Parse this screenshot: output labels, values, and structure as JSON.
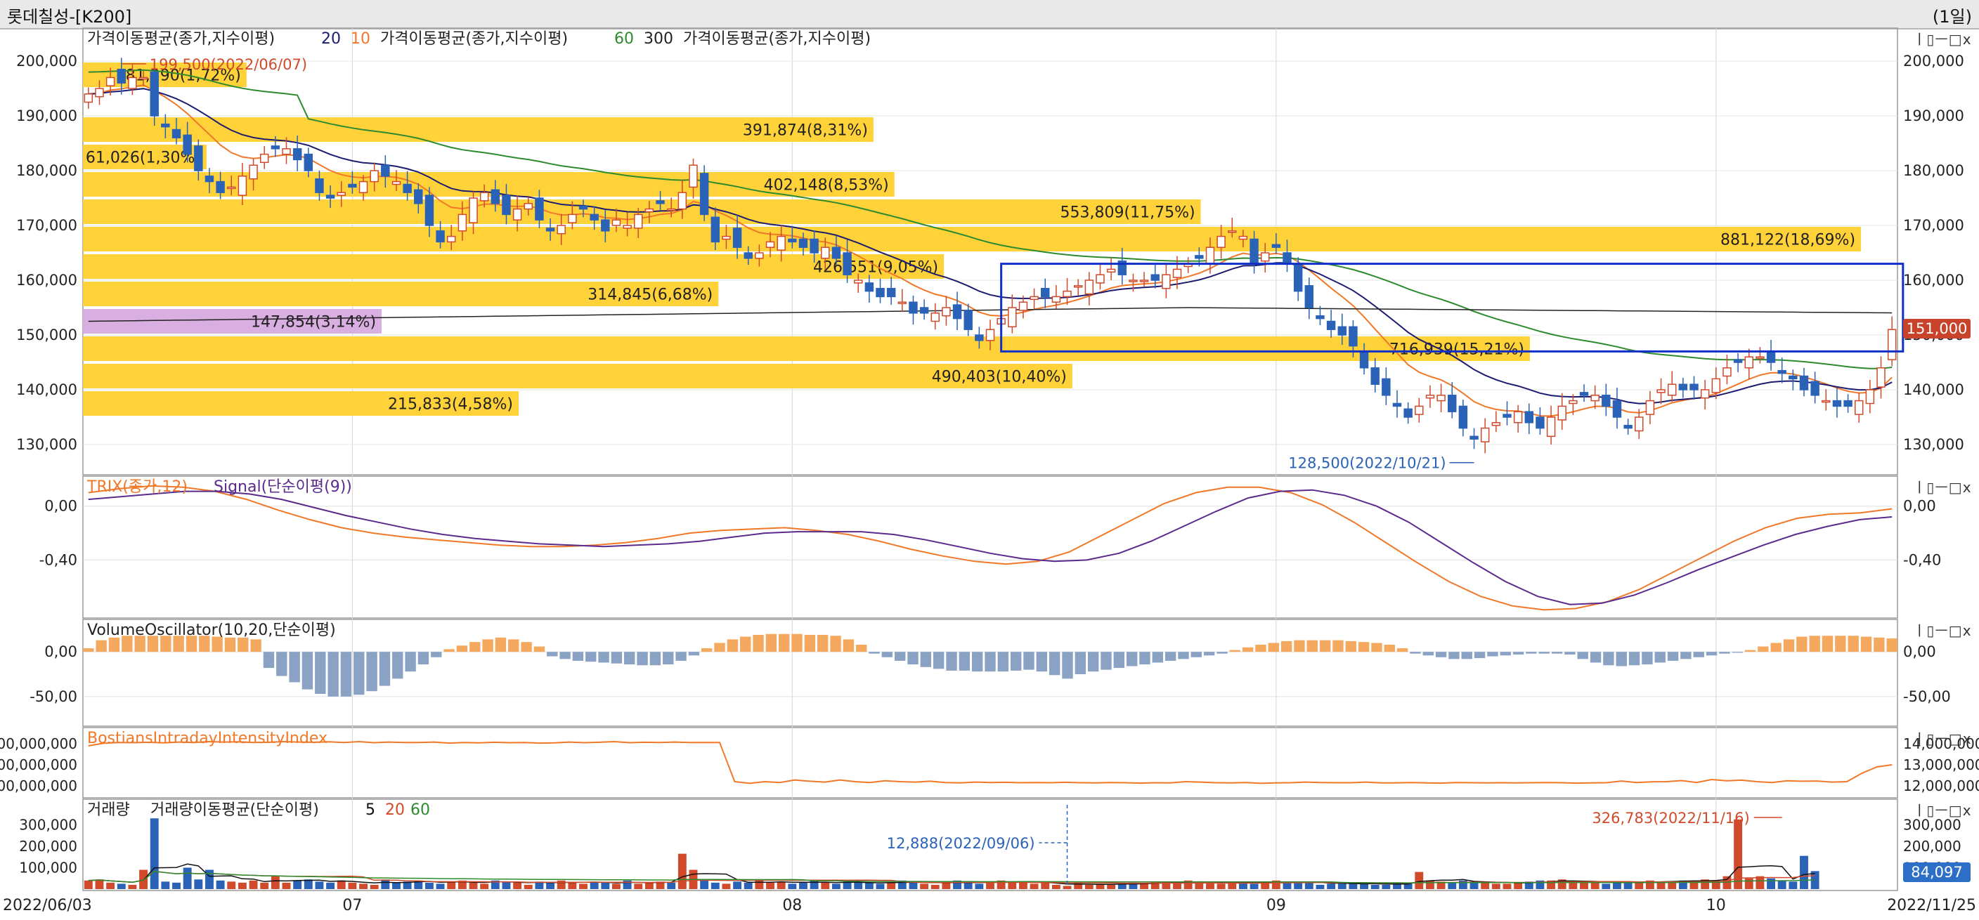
{
  "window": {
    "title": "롯데칠성-[K200]",
    "period": "(1일)",
    "pane_controls": "ㅣ▯ㅡ□ⅹ"
  },
  "colors": {
    "up": "#d04a2b",
    "down": "#2a62b8",
    "ma_short": "#f07828",
    "ma_mid": "#1c1c70",
    "ma_60": "#2e8a2e",
    "ma_300": "#222222",
    "vp_bar": "#ffd23a",
    "vp_bar_current": "#d9aee0",
    "trix": "#f07828",
    "signal": "#5a2a8c",
    "vo_pos": "#f5a95f",
    "vo_neg": "#8aa2c4",
    "bii": "#f07828",
    "box": "#1030c8"
  },
  "chart_data": [
    {
      "type": "candlestick",
      "pane": "price",
      "legend": [
        {
          "text": "가격이동평균(종가,지수이평)",
          "params": [
            "20",
            "10"
          ]
        },
        {
          "text": "가격이동평균(종가,지수이평)",
          "params": [
            "60",
            "300"
          ]
        },
        {
          "text": "가격이동평균(종가,지수이평)",
          "params": []
        }
      ],
      "y_ticks": [
        "200,000",
        "190,000",
        "180,000",
        "170,000",
        "160,000",
        "150,000",
        "140,000",
        "130,000"
      ],
      "ylim": [
        125000,
        205000
      ],
      "x_start_label": "2022/06/03",
      "x_end_label": "2022/11/25",
      "month_labels": [
        "07",
        "08",
        "09",
        "10",
        "11"
      ],
      "current_price": "151,000",
      "closes": [
        194000,
        195000,
        197000,
        196000,
        197000,
        197000,
        190000,
        188000,
        186000,
        183000,
        180000,
        178000,
        176000,
        177000,
        179000,
        181000,
        183000,
        184000,
        184000,
        182000,
        180000,
        176000,
        175000,
        176000,
        177000,
        178000,
        180000,
        179000,
        178000,
        176000,
        174000,
        170000,
        167000,
        168000,
        172000,
        175000,
        176000,
        174000,
        172000,
        173000,
        174000,
        171000,
        169000,
        170000,
        172000,
        173000,
        171000,
        169000,
        171000,
        170000,
        172000,
        173000,
        174000,
        173000,
        176000,
        181000,
        172000,
        167000,
        168000,
        166000,
        164000,
        165000,
        167000,
        168000,
        167000,
        166000,
        165000,
        166000,
        164000,
        161000,
        160000,
        158000,
        157000,
        157000,
        156000,
        154000,
        154000,
        154000,
        155000,
        153000,
        151000,
        149000,
        151000,
        153000,
        155000,
        156000,
        157000,
        157000,
        157000,
        158000,
        159000,
        160000,
        161000,
        162000,
        161000,
        160000,
        160000,
        160000,
        161000,
        162000,
        163000,
        164000,
        166000,
        168000,
        169000,
        168000,
        163000,
        165000,
        166000,
        163000,
        158000,
        155000,
        153000,
        151000,
        150000,
        148000,
        144000,
        141000,
        139000,
        137000,
        135000,
        137000,
        139000,
        139000,
        136000,
        133000,
        131000,
        133000,
        134000,
        135000,
        136000,
        134000,
        133000,
        135000,
        137000,
        138000,
        139000,
        139000,
        137000,
        135000,
        133000,
        135000,
        138000,
        140000,
        141000,
        140000,
        140000,
        140000,
        142000,
        144000,
        145000,
        146000,
        146000,
        145000,
        143000,
        142000,
        140000,
        139000,
        138000,
        137000,
        137000,
        138000,
        140000,
        144000,
        151000
      ],
      "moving_averages": [
        "ma_short",
        "ma_mid",
        "ma_60",
        "ma_300"
      ],
      "volume_profile": [
        {
          "label": "81,290(1,72%)",
          "price_low": 195000,
          "price_high": 200000
        },
        {
          "label": "391,874(8,31%)",
          "price_low": 185000,
          "price_high": 190000
        },
        {
          "label": "61,026(1,30%)",
          "price_low": 180000,
          "price_high": 185000
        },
        {
          "label": "402,148(8,53%)",
          "price_low": 175000,
          "price_high": 180000
        },
        {
          "label": "553,809(11,75%)",
          "price_low": 170000,
          "price_high": 175000
        },
        {
          "label": "881,122(18,69%)",
          "price_low": 165000,
          "price_high": 170000
        },
        {
          "label": "426,551(9,05%)",
          "price_low": 160000,
          "price_high": 165000
        },
        {
          "label": "314,845(6,68%)",
          "price_low": 155000,
          "price_high": 160000
        },
        {
          "label": "147,854(3,14%)",
          "price_low": 150000,
          "price_high": 155000,
          "current": true
        },
        {
          "label": "716,939(15,21%)",
          "price_low": 145000,
          "price_high": 150000
        },
        {
          "label": "490,403(10,40%)",
          "price_low": 140000,
          "price_high": 145000
        },
        {
          "label": "215,833(4,58%)",
          "price_low": 135000,
          "price_high": 140000
        }
      ],
      "annotations": [
        {
          "text": "199,500(2022/06/07)",
          "kind": "high",
          "price": 199500,
          "bar_index": 3
        },
        {
          "text": "128,500(2022/10/21)",
          "kind": "low",
          "price": 128500,
          "bar_index": 126
        }
      ],
      "box": {
        "bar_from": 83,
        "bar_to": 165,
        "price_high": 163000,
        "price_low": 147000
      }
    },
    {
      "type": "line",
      "pane": "trix",
      "legend": [
        {
          "text": "TRIX(종가,12)",
          "color": "trix"
        },
        {
          "text": "Signal(단순이평(9))",
          "color": "signal"
        }
      ],
      "y_ticks": [
        "0,00",
        "-0,40"
      ],
      "ylim": [
        -0.82,
        0.16
      ],
      "series": [
        {
          "name": "TRIX(종가,12)",
          "values": [
            0.1,
            0.13,
            0.15,
            0.14,
            0.11,
            0.05,
            -0.03,
            -0.1,
            -0.16,
            -0.2,
            -0.23,
            -0.25,
            -0.27,
            -0.29,
            -0.3,
            -0.3,
            -0.29,
            -0.27,
            -0.24,
            -0.2,
            -0.18,
            -0.17,
            -0.16,
            -0.18,
            -0.21,
            -0.26,
            -0.32,
            -0.37,
            -0.41,
            -0.43,
            -0.41,
            -0.34,
            -0.22,
            -0.1,
            0.02,
            0.1,
            0.14,
            0.14,
            0.1,
            0.01,
            -0.12,
            -0.27,
            -0.42,
            -0.56,
            -0.67,
            -0.74,
            -0.77,
            -0.76,
            -0.71,
            -0.62,
            -0.5,
            -0.38,
            -0.26,
            -0.16,
            -0.09,
            -0.06,
            -0.05,
            -0.02
          ]
        },
        {
          "name": "Signal(단순이평(9))",
          "values": [
            0.05,
            0.07,
            0.09,
            0.11,
            0.11,
            0.09,
            0.05,
            -0.01,
            -0.07,
            -0.12,
            -0.17,
            -0.21,
            -0.24,
            -0.26,
            -0.28,
            -0.29,
            -0.3,
            -0.29,
            -0.28,
            -0.26,
            -0.23,
            -0.2,
            -0.19,
            -0.19,
            -0.19,
            -0.21,
            -0.25,
            -0.3,
            -0.35,
            -0.39,
            -0.41,
            -0.4,
            -0.35,
            -0.26,
            -0.15,
            -0.04,
            0.06,
            0.11,
            0.12,
            0.08,
            0.0,
            -0.12,
            -0.27,
            -0.42,
            -0.56,
            -0.67,
            -0.73,
            -0.72,
            -0.66,
            -0.57,
            -0.47,
            -0.38,
            -0.29,
            -0.21,
            -0.15,
            -0.1,
            -0.08
          ]
        }
      ]
    },
    {
      "type": "bar",
      "pane": "volume_oscillator",
      "legend": [
        {
          "text": "VolumeOscillator(10,20,단순이평)"
        }
      ],
      "y_ticks": [
        "0,00",
        "-50,00"
      ],
      "ylim": [
        -80,
        30
      ],
      "values": [
        4,
        13,
        16,
        18,
        18,
        18,
        18,
        18,
        18,
        18,
        17,
        16,
        16,
        14,
        -18,
        -27,
        -34,
        -42,
        -47,
        -50,
        -50,
        -48,
        -44,
        -38,
        -30,
        -22,
        -14,
        -6,
        3,
        7,
        11,
        14,
        16,
        14,
        11,
        6,
        -5,
        -8,
        -10,
        -11,
        -12,
        -13,
        -14,
        -15,
        -15,
        -14,
        -10,
        -4,
        4,
        10,
        14,
        17,
        19,
        20,
        20,
        20,
        19,
        19,
        18,
        14,
        8,
        -2,
        -6,
        -10,
        -14,
        -17,
        -19,
        -21,
        -21,
        -22,
        -22,
        -22,
        -21,
        -20,
        -22,
        -26,
        -30,
        -25,
        -22,
        -20,
        -18,
        -16,
        -14,
        -12,
        -10,
        -8,
        -6,
        -4,
        -2,
        2,
        5,
        8,
        10,
        12,
        13,
        13,
        13,
        13,
        12,
        11,
        10,
        8,
        4,
        -2,
        -4,
        -6,
        -8,
        -8,
        -7,
        -5,
        -4,
        -3,
        -2,
        -2,
        -2,
        -3,
        -8,
        -12,
        -15,
        -16,
        -15,
        -14,
        -12,
        -10,
        -8,
        -6,
        -4,
        -2,
        -1,
        2,
        6,
        10,
        14,
        17,
        18,
        18,
        18,
        18,
        17,
        16,
        15
      ]
    },
    {
      "type": "line",
      "pane": "bostian",
      "legend": [
        {
          "text": "BostiansIntradayIntensityIndex"
        }
      ],
      "y_ticks_left": [
        "00,000,000",
        "00,000,000",
        "00,000,000"
      ],
      "y_ticks_right": [
        "14,000,000",
        "13,000,000",
        "12,000,000"
      ],
      "ylim": [
        11500000,
        14500000
      ],
      "values": [
        13900000,
        14020000,
        14060000,
        14050000,
        14070000,
        14040000,
        14080000,
        14060000,
        14100000,
        14080000,
        14090000,
        14060000,
        14070000,
        14100000,
        14080000,
        14070000,
        14090000,
        14060000,
        14100000,
        14050000,
        14080000,
        14060000,
        14060000,
        14080000,
        14030000,
        14060000,
        14040000,
        14070000,
        14050000,
        14060000,
        14030000,
        14040000,
        14080000,
        14050000,
        14070000,
        14100000,
        14050000,
        14070000,
        14060000,
        14080000,
        14060000,
        14060000,
        14060000,
        12200000,
        12120000,
        12200000,
        12160000,
        12280000,
        12220000,
        12180000,
        12280000,
        12200000,
        12160000,
        12240000,
        12200000,
        12180000,
        12220000,
        12160000,
        12140000,
        12180000,
        12160000,
        12170000,
        12150000,
        12160000,
        12150000,
        12170000,
        12150000,
        12140000,
        12160000,
        12150000,
        12130000,
        12150000,
        12140000,
        12200000,
        12180000,
        12150000,
        12140000,
        12160000,
        12120000,
        12140000,
        12150000,
        12180000,
        12160000,
        12150000,
        12150000,
        12180000,
        12140000,
        12140000,
        12160000,
        12140000,
        12130000,
        12160000,
        12150000,
        12140000,
        12150000,
        12140000,
        12150000,
        12160000,
        12150000,
        12130000,
        12140000,
        12150000,
        12230000,
        12160000,
        12190000,
        12200000,
        12250000,
        12160000,
        12300000,
        12240000,
        12270000,
        12200000,
        12160000,
        12240000,
        12220000,
        12230000,
        12180000,
        12200000,
        12600000,
        12900000,
        13000000
      ]
    },
    {
      "type": "bar",
      "pane": "volume",
      "legend": [
        {
          "text": "거래량"
        },
        {
          "text": "거래량이동평균(단순이평)",
          "params": [
            "5",
            "20",
            "60"
          ]
        }
      ],
      "y_ticks": [
        "300,000",
        "200,000",
        "100,000"
      ],
      "ylim": [
        0,
        380000
      ],
      "current_volume": "84,097",
      "values": [
        40000,
        45000,
        30000,
        25000,
        20000,
        90000,
        330000,
        35000,
        30000,
        100000,
        45000,
        90000,
        40000,
        35000,
        30000,
        40000,
        30000,
        60000,
        30000,
        40000,
        45000,
        35000,
        30000,
        40000,
        30000,
        25000,
        20000,
        45000,
        30000,
        35000,
        40000,
        30000,
        25000,
        35000,
        40000,
        30000,
        25000,
        40000,
        35000,
        30000,
        20000,
        35000,
        30000,
        40000,
        30000,
        25000,
        35000,
        30000,
        25000,
        40000,
        25000,
        30000,
        35000,
        30000,
        165000,
        90000,
        40000,
        30000,
        25000,
        35000,
        30000,
        40000,
        30000,
        35000,
        25000,
        30000,
        40000,
        30000,
        25000,
        35000,
        30000,
        30000,
        25000,
        30000,
        40000,
        35000,
        25000,
        20000,
        30000,
        40000,
        35000,
        25000,
        30000,
        40000,
        35000,
        30000,
        25000,
        30000,
        20000,
        15000,
        30000,
        20000,
        25000,
        20000,
        25000,
        30000,
        25000,
        35000,
        30000,
        30000,
        40000,
        35000,
        30000,
        25000,
        35000,
        30000,
        25000,
        30000,
        40000,
        30000,
        35000,
        30000,
        20000,
        25000,
        30000,
        25000,
        25000,
        20000,
        20000,
        30000,
        25000,
        80000,
        40000,
        35000,
        30000,
        40000,
        35000,
        30000,
        25000,
        25000,
        30000,
        35000,
        40000,
        40000,
        45000,
        30000,
        30000,
        35000,
        25000,
        30000,
        30000,
        35000,
        40000,
        35000,
        35000,
        40000,
        40000,
        45000,
        40000,
        60000,
        325000,
        50000,
        60000,
        50000,
        40000,
        35000,
        155000,
        84000
      ],
      "annotations": [
        {
          "text": "12,888(2022/09/06)",
          "kind": "low",
          "bar_index": 89
        },
        {
          "text": "326,783(2022/11/16)",
          "kind": "high",
          "bar_index": 154
        }
      ]
    }
  ]
}
